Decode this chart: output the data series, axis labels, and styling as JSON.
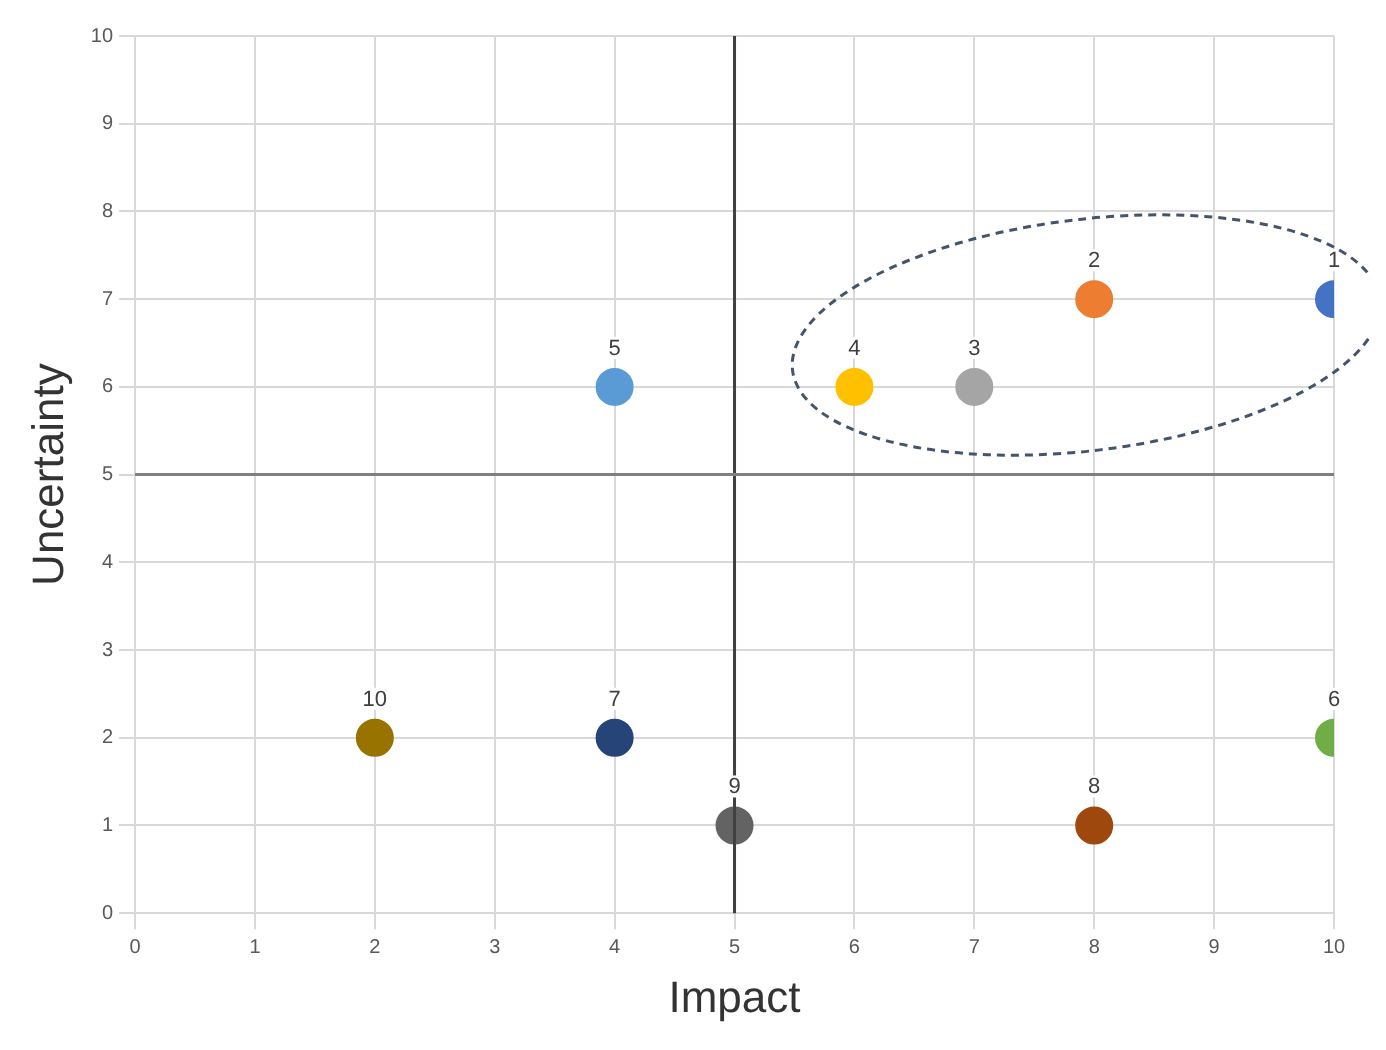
{
  "chart_data": {
    "type": "scatter",
    "xlabel": "Impact",
    "ylabel": "Uncertainty",
    "xlim": [
      0,
      10
    ],
    "ylim": [
      0,
      10
    ],
    "xticks": [
      0,
      1,
      2,
      3,
      4,
      5,
      6,
      7,
      8,
      9,
      10
    ],
    "yticks": [
      0,
      1,
      2,
      3,
      4,
      5,
      6,
      7,
      8,
      9,
      10
    ],
    "grid": true,
    "legend": false,
    "marker": "circle",
    "series": [
      {
        "name": "1",
        "color": "#4472c4",
        "x": [
          10
        ],
        "values": [
          7
        ]
      },
      {
        "name": "2",
        "color": "#ed7d31",
        "x": [
          8
        ],
        "values": [
          7
        ]
      },
      {
        "name": "3",
        "color": "#a5a5a5",
        "x": [
          7
        ],
        "values": [
          6
        ]
      },
      {
        "name": "4",
        "color": "#ffc000",
        "x": [
          6
        ],
        "values": [
          6
        ]
      },
      {
        "name": "5",
        "color": "#5b9bd5",
        "x": [
          4
        ],
        "values": [
          6
        ]
      },
      {
        "name": "6",
        "color": "#70ad47",
        "x": [
          10
        ],
        "values": [
          2
        ]
      },
      {
        "name": "7",
        "color": "#264478",
        "x": [
          4
        ],
        "values": [
          2
        ]
      },
      {
        "name": "8",
        "color": "#9e480e",
        "x": [
          8
        ],
        "values": [
          1
        ]
      },
      {
        "name": "9",
        "color": "#636363",
        "x": [
          5
        ],
        "values": [
          1
        ]
      },
      {
        "name": "10",
        "color": "#997300",
        "x": [
          2
        ],
        "values": [
          2
        ]
      }
    ],
    "ref_lines": [
      {
        "axis": "x",
        "value": 5,
        "color": "#404040"
      },
      {
        "axis": "y",
        "value": 5,
        "color": "#808080"
      }
    ]
  }
}
